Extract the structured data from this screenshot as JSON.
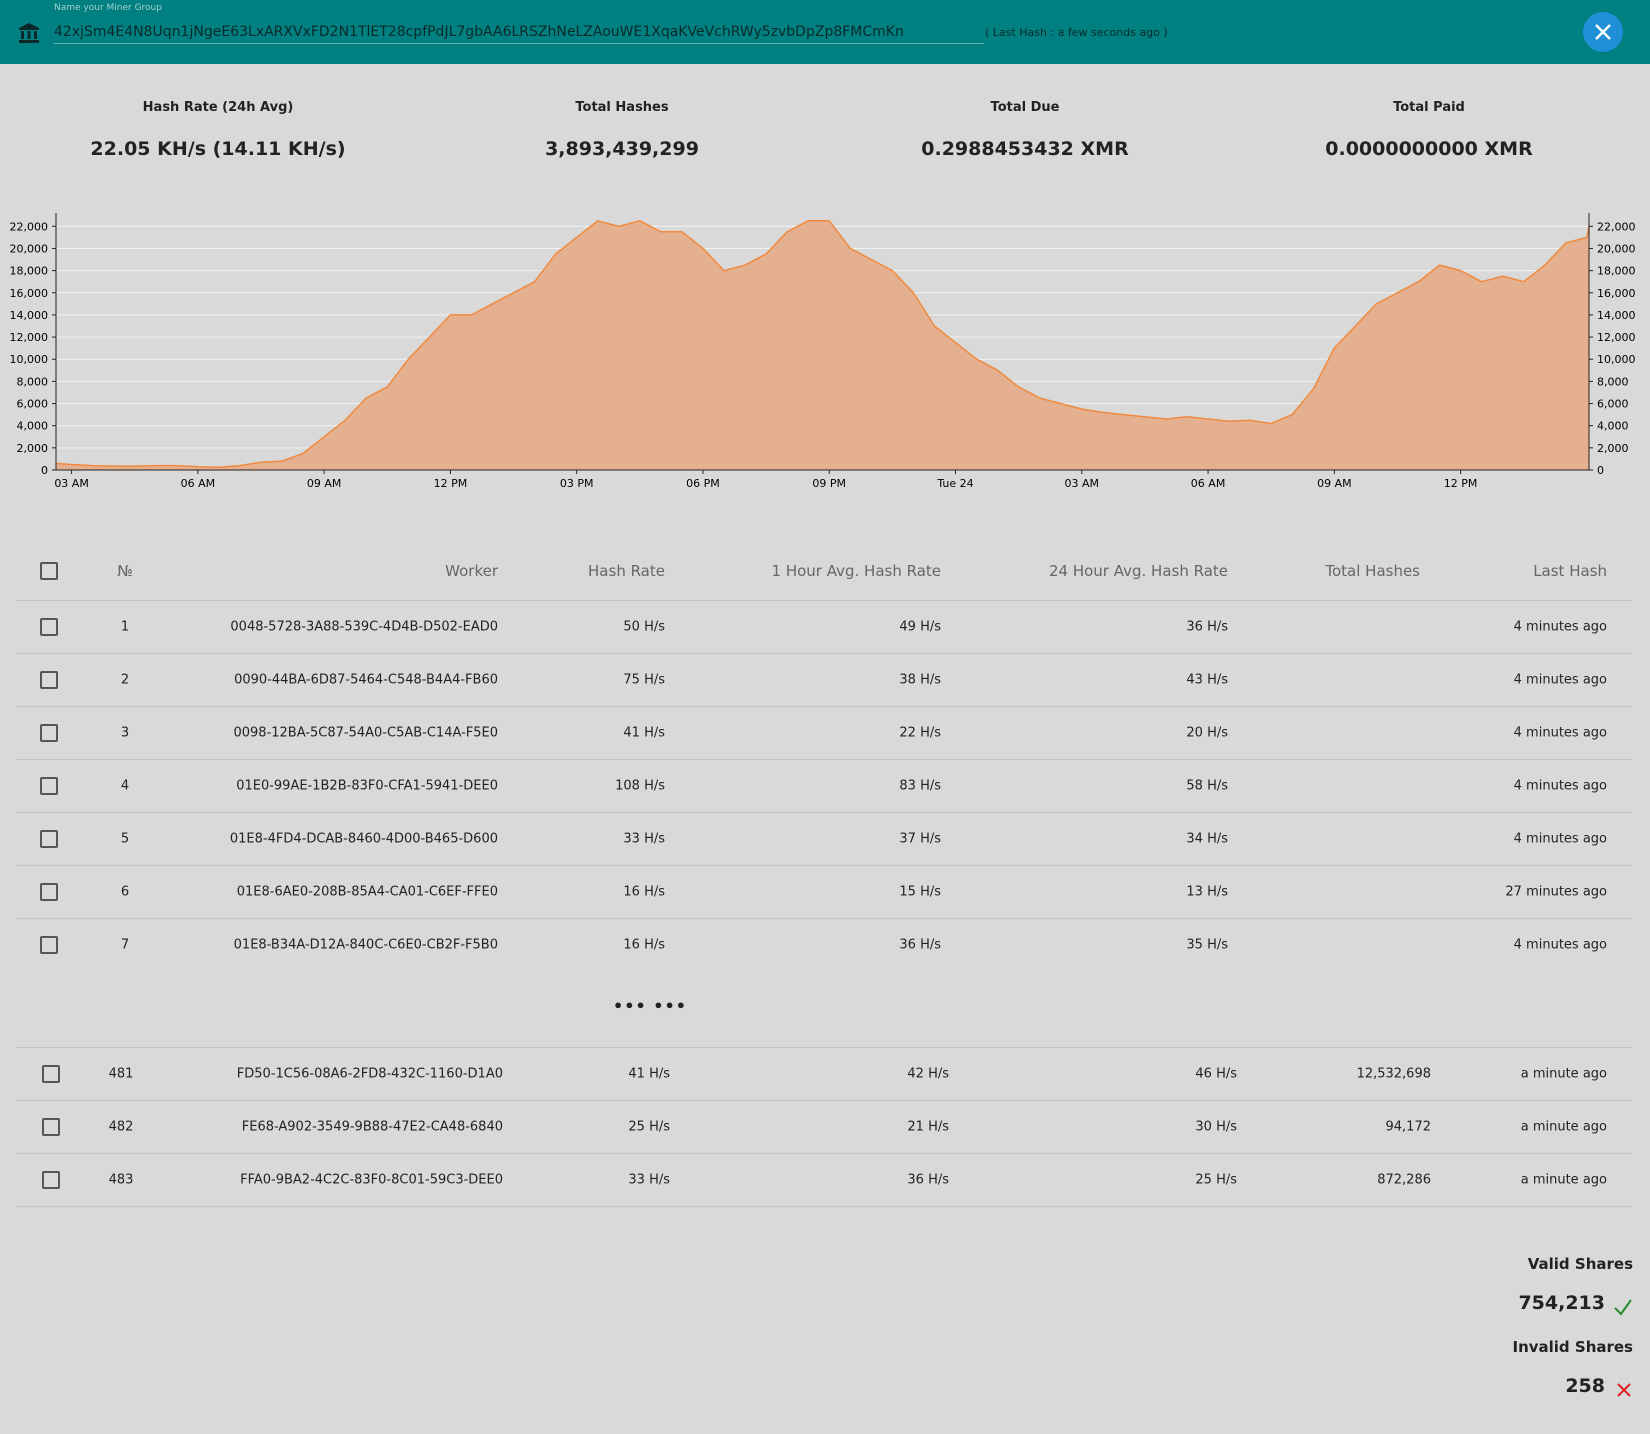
{
  "header": {
    "field_label": "Name your Miner Group",
    "address": "42xjSm4E4N8Uqn1jNgeE63LxARXVxFD2N1TlET28cpfPdJL7gbAA6LRSZhNeLZAouWE1XqaKVeVchRWy5zvbDpZp8FMCmKn",
    "last_hash": "( Last Hash : a few seconds ago )"
  },
  "stats": [
    {
      "label": "Hash Rate (24h Avg)",
      "value": "22.05 KH/s (14.11 KH/s)"
    },
    {
      "label": "Total Hashes",
      "value": "3,893,439,299"
    },
    {
      "label": "Total Due",
      "value": "0.2988453432 XMR"
    },
    {
      "label": "Total Paid",
      "value": "0.0000000000 XMR"
    }
  ],
  "chart_data": {
    "type": "area",
    "color": "#f08a3e",
    "fill": "#e5b08f",
    "grid": true,
    "x": [
      2.63,
      3,
      3.5,
      4,
      4.5,
      5,
      5.5,
      6,
      6.5,
      7,
      7.5,
      8,
      8.5,
      9,
      9.5,
      10,
      10.5,
      11,
      11.5,
      12,
      12.5,
      13,
      13.5,
      14,
      14.5,
      15,
      15.5,
      16,
      16.5,
      17,
      17.5,
      18,
      18.5,
      19,
      19.5,
      20,
      20.5,
      21,
      21.5,
      22,
      22.5,
      23,
      23.5,
      24,
      24.5,
      25,
      25.5,
      26,
      26.5,
      27,
      27.5,
      28,
      28.5,
      29,
      29.5,
      30,
      30.5,
      31,
      31.5,
      32,
      32.5,
      33,
      33.5,
      34,
      34.5,
      35,
      35.5,
      36,
      36.5,
      37,
      37.5,
      38,
      38.5,
      39,
      39.05
    ],
    "values": [
      600,
      500,
      400,
      350,
      350,
      400,
      400,
      300,
      250,
      400,
      700,
      800,
      1500,
      3000,
      4500,
      6500,
      7500,
      10000,
      12000,
      14000,
      14000,
      15000,
      16000,
      17000,
      19500,
      21000,
      22500,
      22000,
      22500,
      21500,
      21500,
      20000,
      18000,
      18500,
      19500,
      21500,
      22500,
      22500,
      20000,
      19000,
      18000,
      16000,
      13000,
      11500,
      10000,
      9000,
      7500,
      6500,
      6000,
      5500,
      5200,
      5000,
      4800,
      4600,
      4800,
      4600,
      4400,
      4500,
      4200,
      5000,
      7300,
      11000,
      13000,
      15000,
      16000,
      17000,
      18500,
      18000,
      17000,
      17500,
      17000,
      18500,
      20500,
      21000,
      22000
    ],
    "xlim": [
      2.63,
      39.05
    ],
    "xticks": [
      {
        "value": 3,
        "label": "03 AM"
      },
      {
        "value": 6,
        "label": "06 AM"
      },
      {
        "value": 9,
        "label": "09 AM"
      },
      {
        "value": 12,
        "label": "12 PM"
      },
      {
        "value": 15,
        "label": "03 PM"
      },
      {
        "value": 18,
        "label": "06 PM"
      },
      {
        "value": 21,
        "label": "09 PM"
      },
      {
        "value": 24,
        "label": "Tue 24"
      },
      {
        "value": 27,
        "label": "03 AM"
      },
      {
        "value": 30,
        "label": "06 AM"
      },
      {
        "value": 33,
        "label": "09 AM"
      },
      {
        "value": 36,
        "label": "12 PM"
      }
    ],
    "ylim": [
      0,
      23200
    ],
    "yticks": [
      0,
      {
        "value": 2000,
        "label": "2,000"
      },
      {
        "value": 4000,
        "label": "4,000"
      },
      {
        "value": 6000,
        "label": "6,000"
      },
      {
        "value": 8000,
        "label": "8,000"
      },
      {
        "value": 10000,
        "label": "10,000"
      },
      {
        "value": 12000,
        "label": "12,000"
      },
      {
        "value": 14000,
        "label": "14,000"
      },
      {
        "value": 16000,
        "label": "16,000"
      },
      {
        "value": 18000,
        "label": "18,000"
      },
      {
        "value": 20000,
        "label": "20,000"
      },
      {
        "value": 22000,
        "label": "22,000"
      }
    ]
  },
  "table": {
    "columns": [
      "№",
      "Worker",
      "Hash Rate",
      "1 Hour Avg. Hash Rate",
      "24 Hour Avg. Hash Rate",
      "Total Hashes",
      "Last Hash"
    ],
    "rows": [
      [
        "1",
        "0048-5728-3A88-539C-4D4B-D502-EAD0",
        "50 H/s",
        "49 H/s",
        "36 H/s",
        null,
        "4 minutes ago"
      ],
      [
        "2",
        "0090-44BA-6D87-5464-C548-B4A4-FB60",
        "75 H/s",
        "38 H/s",
        "43 H/s",
        null,
        "4 minutes ago"
      ],
      [
        "3",
        "0098-12BA-5C87-54A0-C5AB-C14A-F5E0",
        "41 H/s",
        "22 H/s",
        "20 H/s",
        null,
        "4 minutes ago"
      ],
      [
        "4",
        "01E0-99AE-1B2B-83F0-CFA1-5941-DEE0",
        "108 H/s",
        "83 H/s",
        "58 H/s",
        null,
        "4 minutes ago"
      ],
      [
        "5",
        "01E8-4FD4-DCAB-8460-4D00-B465-D600",
        "33 H/s",
        "37 H/s",
        "34 H/s",
        null,
        "4 minutes ago"
      ],
      [
        "6",
        "01E8-6AE0-208B-85A4-CA01-C6EF-FFE0",
        "16 H/s",
        "15 H/s",
        "13 H/s",
        null,
        "27 minutes ago"
      ],
      [
        "7",
        "01E8-B34A-D12A-840C-C6E0-CB2F-F5B0",
        "16 H/s",
        "36 H/s",
        "35 H/s",
        null,
        "4 minutes ago"
      ]
    ],
    "ellipsis": "••• •••",
    "tail_rows": [
      [
        "481",
        "FD50-1C56-08A6-2FD8-432C-1160-D1A0",
        "41 H/s",
        "42 H/s",
        "46 H/s",
        "12,532,698",
        "a minute ago"
      ],
      [
        "482",
        "FE68-A902-3549-9B88-47E2-CA48-6840",
        "25 H/s",
        "21 H/s",
        "30 H/s",
        "94,172",
        "a minute ago"
      ],
      [
        "483",
        "FFA0-9BA2-4C2C-83F0-8C01-59C3-DEE0",
        "33 H/s",
        "36 H/s",
        "25 H/s",
        "872,286",
        "a minute ago"
      ]
    ]
  },
  "shares": {
    "valid_label": "Valid Shares",
    "valid": "754,213",
    "invalid_label": "Invalid Shares",
    "invalid": "258"
  }
}
